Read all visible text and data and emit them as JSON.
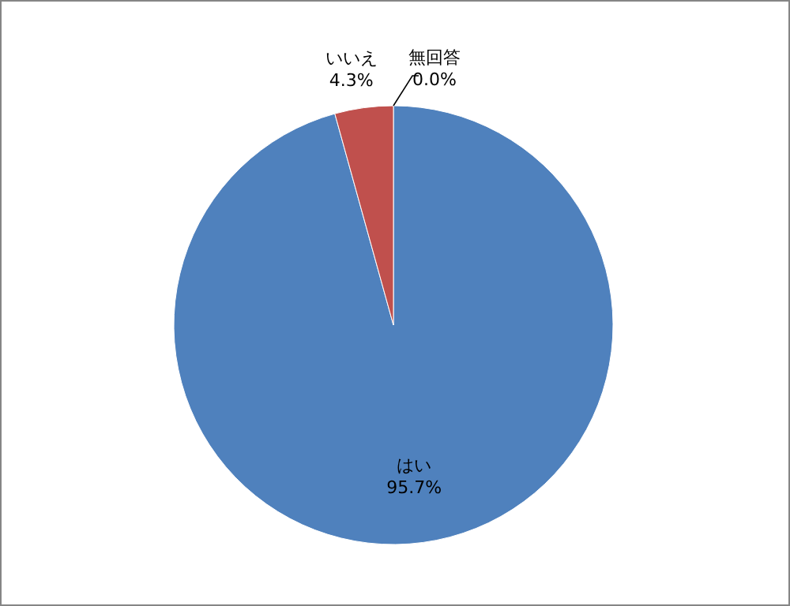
{
  "chart_data": {
    "type": "pie",
    "categories": [
      "はい",
      "いいえ",
      "無回答"
    ],
    "values": [
      95.7,
      4.3,
      0.0
    ],
    "colors": [
      "#4f81bd",
      "#c0504d",
      "#9bbb59"
    ],
    "value_labels": [
      "95.7%",
      "4.3%",
      "0.0%"
    ],
    "legend": false
  }
}
